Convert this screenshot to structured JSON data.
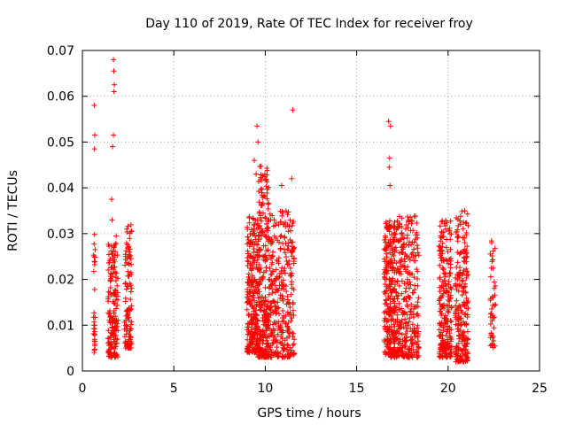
{
  "chart_data": {
    "type": "scatter",
    "title": "Day 110 of 2019, Rate Of TEC Index for receiver froy",
    "xlabel": "GPS time / hours",
    "ylabel": "ROTI / TECUs",
    "xlim": [
      0,
      25
    ],
    "ylim": [
      0,
      0.07
    ],
    "xticks": [
      0,
      5,
      10,
      15,
      20,
      25
    ],
    "yticks": [
      0,
      0.01,
      0.02,
      0.03,
      0.04,
      0.05,
      0.06,
      0.07
    ],
    "xtick_labels": [
      "0",
      "5",
      "10",
      "15",
      "20",
      "25"
    ],
    "ytick_labels": [
      "0",
      "0.01",
      "0.02",
      "0.03",
      "0.04",
      "0.05",
      "0.06",
      "0.07"
    ],
    "grid": true,
    "marker": "+",
    "marker_color": "#ff0000",
    "series": [
      {
        "name": "ROTI",
        "clusters": [
          {
            "x": [
              0.6,
              0.7
            ],
            "y": [
              0.004,
              0.03
            ],
            "n": 30,
            "outliers": [
              [
                0.65,
                0.058
              ],
              [
                0.68,
                0.0515
              ],
              [
                0.66,
                0.0485
              ],
              [
                0.7,
                0.0265
              ]
            ]
          },
          {
            "x": [
              1.4,
              1.95
            ],
            "y": [
              0.003,
              0.028
            ],
            "n": 170,
            "outliers": [
              [
                1.7,
                0.068
              ],
              [
                1.72,
                0.0655
              ],
              [
                1.75,
                0.0625
              ],
              [
                1.73,
                0.061
              ],
              [
                1.7,
                0.0515
              ],
              [
                1.65,
                0.049
              ],
              [
                1.6,
                0.0375
              ],
              [
                1.62,
                0.033
              ],
              [
                1.85,
                0.0295
              ]
            ]
          },
          {
            "x": [
              2.3,
              2.7
            ],
            "y": [
              0.005,
              0.032
            ],
            "n": 110,
            "outliers": []
          },
          {
            "x": [
              9.0,
              9.6
            ],
            "y": [
              0.004,
              0.035
            ],
            "n": 260,
            "outliers": [
              [
                9.4,
                0.046
              ],
              [
                9.55,
                0.0535
              ],
              [
                9.6,
                0.05
              ],
              [
                9.5,
                0.043
              ]
            ]
          },
          {
            "x": [
              9.6,
              10.2
            ],
            "y": [
              0.003,
              0.045
            ],
            "n": 260,
            "outliers": []
          },
          {
            "x": [
              10.2,
              11.6
            ],
            "y": [
              0.003,
              0.035
            ],
            "n": 320,
            "outliers": [
              [
                11.5,
                0.057
              ],
              [
                11.45,
                0.042
              ],
              [
                10.9,
                0.0405
              ]
            ]
          },
          {
            "x": [
              16.5,
              17.1
            ],
            "y": [
              0.003,
              0.033
            ],
            "n": 260,
            "outliers": [
              [
                16.75,
                0.0545
              ],
              [
                16.85,
                0.0535
              ],
              [
                16.8,
                0.0465
              ],
              [
                16.78,
                0.0445
              ],
              [
                16.82,
                0.0405
              ]
            ]
          },
          {
            "x": [
              17.1,
              18.4
            ],
            "y": [
              0.003,
              0.034
            ],
            "n": 320,
            "outliers": []
          },
          {
            "x": [
              19.5,
              20.2
            ],
            "y": [
              0.003,
              0.033
            ],
            "n": 230,
            "outliers": []
          },
          {
            "x": [
              20.4,
              21.1
            ],
            "y": [
              0.002,
              0.035
            ],
            "n": 230,
            "outliers": []
          },
          {
            "x": [
              22.3,
              22.6
            ],
            "y": [
              0.005,
              0.029
            ],
            "n": 45,
            "outliers": []
          }
        ]
      }
    ]
  }
}
